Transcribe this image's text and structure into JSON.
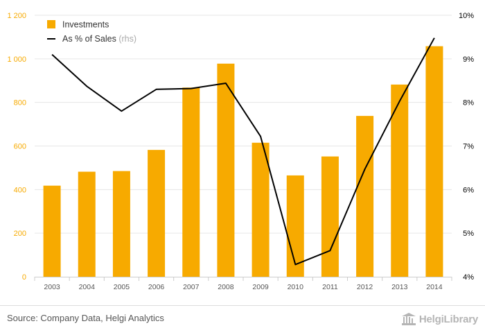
{
  "chart_data": {
    "type": "bar",
    "categories": [
      "2003",
      "2004",
      "2005",
      "2006",
      "2007",
      "2008",
      "2009",
      "2010",
      "2011",
      "2012",
      "2013",
      "2014"
    ],
    "series": [
      {
        "name": "Investments",
        "type": "bar",
        "axis": "left",
        "values": [
          418,
          482,
          485,
          582,
          868,
          978,
          615,
          465,
          552,
          738,
          882,
          1058
        ],
        "color": "#f7aa00"
      },
      {
        "name": "As % of Sales",
        "name_suffix": "(rhs)",
        "type": "line",
        "axis": "right",
        "values": [
          9.1,
          8.37,
          7.8,
          8.3,
          8.32,
          8.44,
          7.22,
          4.28,
          4.6,
          6.47,
          8.03,
          9.48
        ],
        "color": "#000000"
      }
    ],
    "y_left": {
      "ylim": [
        0,
        1200
      ],
      "ticks": [
        0,
        200,
        400,
        600,
        800,
        1000,
        1200
      ],
      "tick_labels": [
        "0",
        "200",
        "400",
        "600",
        "800",
        "1 000",
        "1 200"
      ],
      "color": "#f7aa00"
    },
    "y_right": {
      "ylim": [
        4,
        10
      ],
      "ticks": [
        4,
        5,
        6,
        7,
        8,
        9,
        10
      ],
      "tick_labels": [
        "4%",
        "5%",
        "6%",
        "7%",
        "8%",
        "9%",
        "10%"
      ],
      "color": "#000000"
    },
    "grid": "horizontal",
    "legend_position": "top-left"
  },
  "footer": {
    "source": "Source: Company Data, Helgi Analytics",
    "brand": "HelgiLibrary"
  }
}
